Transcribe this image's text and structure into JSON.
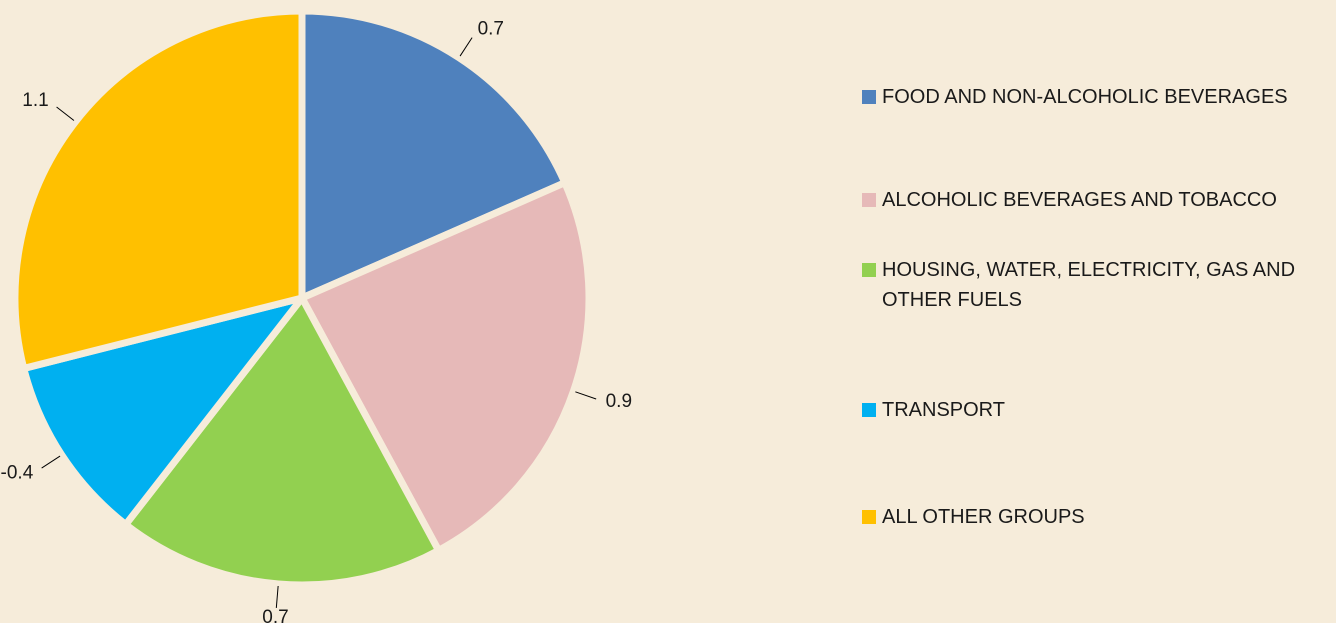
{
  "chart_data": {
    "type": "pie",
    "categories": [
      "FOOD AND NON-ALCOHOLIC BEVERAGES",
      "ALCOHOLIC BEVERAGES AND TOBACCO",
      "HOUSING, WATER, ELECTRICITY, GAS AND OTHER FUELS",
      "TRANSPORT",
      "ALL OTHER GROUPS"
    ],
    "values": [
      0.7,
      0.9,
      0.7,
      -0.4,
      1.1
    ],
    "colors": [
      "#4f81bd",
      "#e6b9b8",
      "#92d050",
      "#00b0f0",
      "#ffc000"
    ],
    "legend": "right"
  }
}
